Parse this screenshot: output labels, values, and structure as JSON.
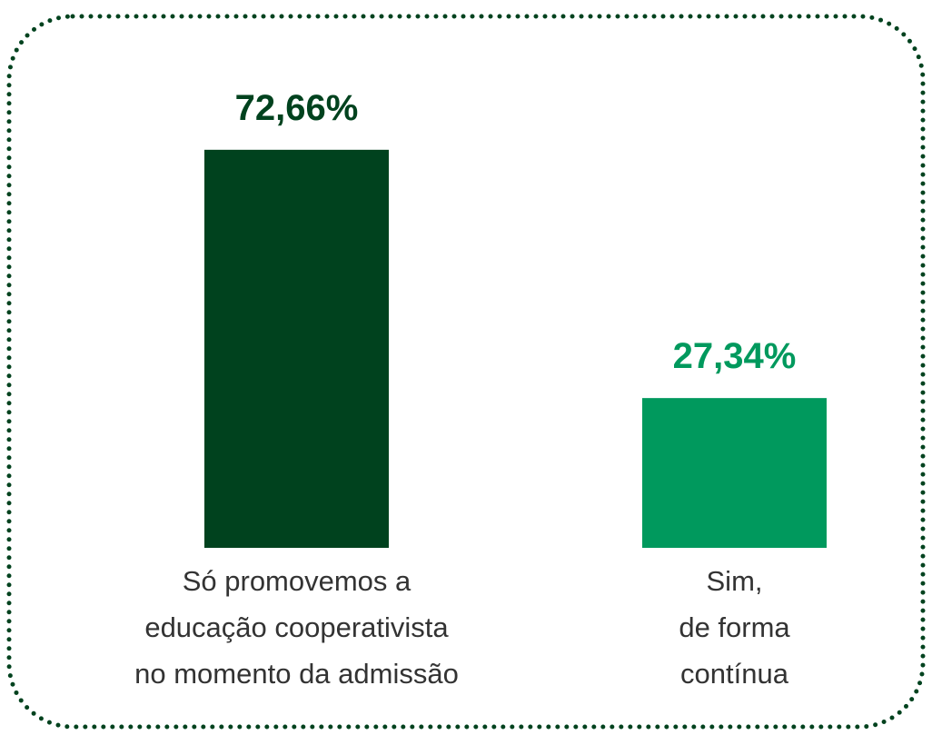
{
  "chart_data": {
    "type": "bar",
    "categories": [
      "Só promovemos a\neducação cooperativista\nno momento da admissão",
      "Sim,\nde forma\ncontínua"
    ],
    "values": [
      72.66,
      27.34
    ],
    "value_labels": [
      "72,66%",
      "27,34%"
    ],
    "colors": [
      "#00421e",
      "#00995d"
    ]
  }
}
